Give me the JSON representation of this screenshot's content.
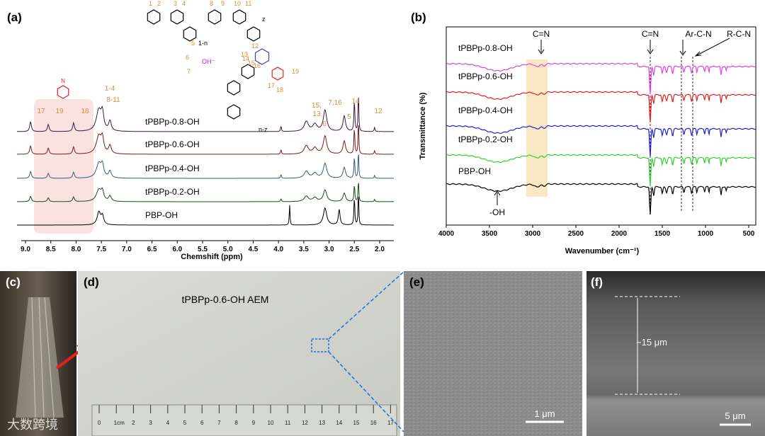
{
  "panels": {
    "a": {
      "label": "(a)",
      "x_axis_label": "Chemshift (ppm)",
      "x_ticks": [
        "9.0",
        "8.5",
        "8.0",
        "7.5",
        "7.0",
        "6.5",
        "6.0",
        "5.5",
        "5.0",
        "4.5",
        "4.0",
        "3.5",
        "3.0",
        "2.5",
        "2.0"
      ],
      "traces": [
        "tPBPp-0.8-OH",
        "tPBPp-0.6-OH",
        "tPBPp-0.4-OH",
        "tPBPp-0.2-OH",
        "PBP-OH"
      ],
      "peaks": [
        "17",
        "19",
        "18",
        "1-4",
        "8-11",
        "15,",
        "13",
        "6",
        "7,16",
        "14",
        "5",
        "12"
      ],
      "structure": [
        "1",
        "2",
        "3",
        "4",
        "5",
        "6",
        "7",
        "8",
        "9",
        "10",
        "11",
        "12",
        "13",
        "14",
        "15",
        "16",
        "17",
        "18",
        "19",
        "1-n",
        "n-z",
        "z",
        "OH⁻",
        "N"
      ]
    },
    "b": {
      "label": "(b)",
      "x_axis_label": "Wavenumber (cm⁻¹)",
      "y_axis_label": "Transmittance (%)",
      "x_ticks": [
        "4000",
        "3500",
        "3000",
        "2500",
        "2000",
        "1500",
        "1000",
        "500"
      ],
      "traces": [
        "tPBPp-0.8-OH",
        "tPBPp-0.6-OH",
        "tPBPp-0.4-OH",
        "tPBPp-0.2-OH",
        "PBP-OH"
      ],
      "annotations": [
        "C=N",
        "C=N",
        "Ar-C-N",
        "R-C-N",
        "-OH"
      ]
    },
    "c": {
      "label": "(c)"
    },
    "d": {
      "label": "(d)",
      "caption": "tPBPp-0.6-OH AEM",
      "ruler": [
        "0",
        "1cm",
        "2",
        "3",
        "4",
        "5",
        "6",
        "7",
        "8",
        "9",
        "10",
        "11",
        "12",
        "13",
        "14",
        "15",
        "16",
        "17"
      ]
    },
    "e": {
      "label": "(e)",
      "scale_bar": "1 μm"
    },
    "f": {
      "label": "(f)",
      "thickness": "~15 μm",
      "scale_bar": "5 μm"
    }
  },
  "watermark": "大数跨境"
}
